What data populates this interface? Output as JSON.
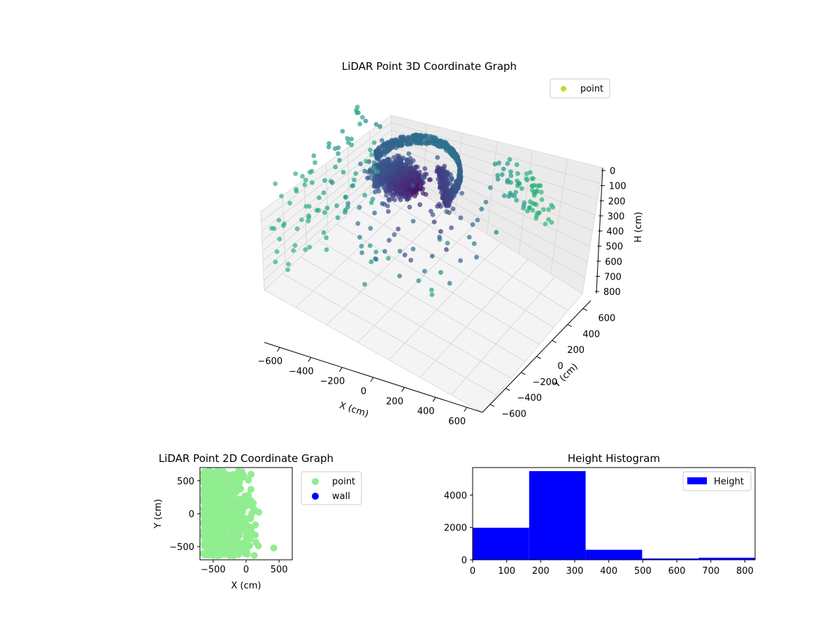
{
  "chart_data": [
    {
      "type": "scatter",
      "projection": "3d",
      "title": "LiDAR Point 3D Coordinate Graph",
      "xlabel": "X (cm)",
      "ylabel": "Y (cm)",
      "zlabel": "H (cm)",
      "xlim": [
        -700,
        700
      ],
      "ylim": [
        -700,
        700
      ],
      "zlim": [
        0,
        800
      ],
      "zaxis_inverted": true,
      "xticks": [
        -600,
        -400,
        -200,
        0,
        200,
        400,
        600
      ],
      "yticks": [
        -600,
        -400,
        -200,
        0,
        200,
        400,
        600
      ],
      "zticks": [
        0,
        100,
        200,
        300,
        400,
        500,
        600,
        700,
        800
      ],
      "grid": true,
      "legend": {
        "position": "upper-right",
        "entries": [
          {
            "label": "point",
            "color": "#bcdf27"
          }
        ]
      },
      "colormap": "viridis",
      "series": [
        {
          "name": "point",
          "note_values": "dense cloud of LiDAR points"
        }
      ],
      "clusters": {
        "walls": [
          {
            "x": [
              -650,
              650
            ],
            "y": [
              650,
              650
            ],
            "h": [
              80,
              400
            ]
          },
          {
            "x": [
              -650,
              -650
            ],
            "y": [
              -600,
              600
            ],
            "h": [
              150,
              800
            ]
          }
        ],
        "core": {
          "x": [
            -300,
            200
          ],
          "y": [
            -150,
            450
          ],
          "h": [
            180,
            330
          ]
        }
      }
    },
    {
      "type": "scatter",
      "title": "LiDAR Point 2D Coordinate Graph",
      "xlabel": "X (cm)",
      "ylabel": "Y (cm)",
      "xlim": [
        -700,
        700
      ],
      "ylim": [
        -700,
        700
      ],
      "xticks": [
        -500,
        0,
        500
      ],
      "yticks": [
        -500,
        0,
        500
      ],
      "legend": {
        "position": "outside-right",
        "entries": [
          {
            "label": "point",
            "color": "#90ee90"
          },
          {
            "label": "wall",
            "color": "#0000ff"
          }
        ]
      },
      "series": [
        {
          "name": "point",
          "color": "#90ee90",
          "note": "dense blob roughly X -650..200, Y -650..650"
        },
        {
          "name": "wall",
          "color": "#0000ff",
          "values": []
        }
      ],
      "outlier": {
        "x": 420,
        "y": -520
      }
    },
    {
      "type": "bar",
      "subtype": "histogram",
      "title": "Height Histogram",
      "xlim": [
        0,
        830
      ],
      "ylim": [
        0,
        5700
      ],
      "xticks": [
        0,
        100,
        200,
        300,
        400,
        500,
        600,
        700,
        800
      ],
      "yticks": [
        0,
        2000,
        4000
      ],
      "legend": {
        "position": "upper-right",
        "entries": [
          {
            "label": "Height",
            "color": "#0000ff"
          }
        ]
      },
      "bins": [
        {
          "from": 0,
          "to": 166,
          "count": 1980
        },
        {
          "from": 166,
          "to": 332,
          "count": 5480
        },
        {
          "from": 332,
          "to": 498,
          "count": 620
        },
        {
          "from": 498,
          "to": 664,
          "count": 80
        },
        {
          "from": 664,
          "to": 830,
          "count": 130
        }
      ],
      "color": "#0000ff"
    }
  ]
}
